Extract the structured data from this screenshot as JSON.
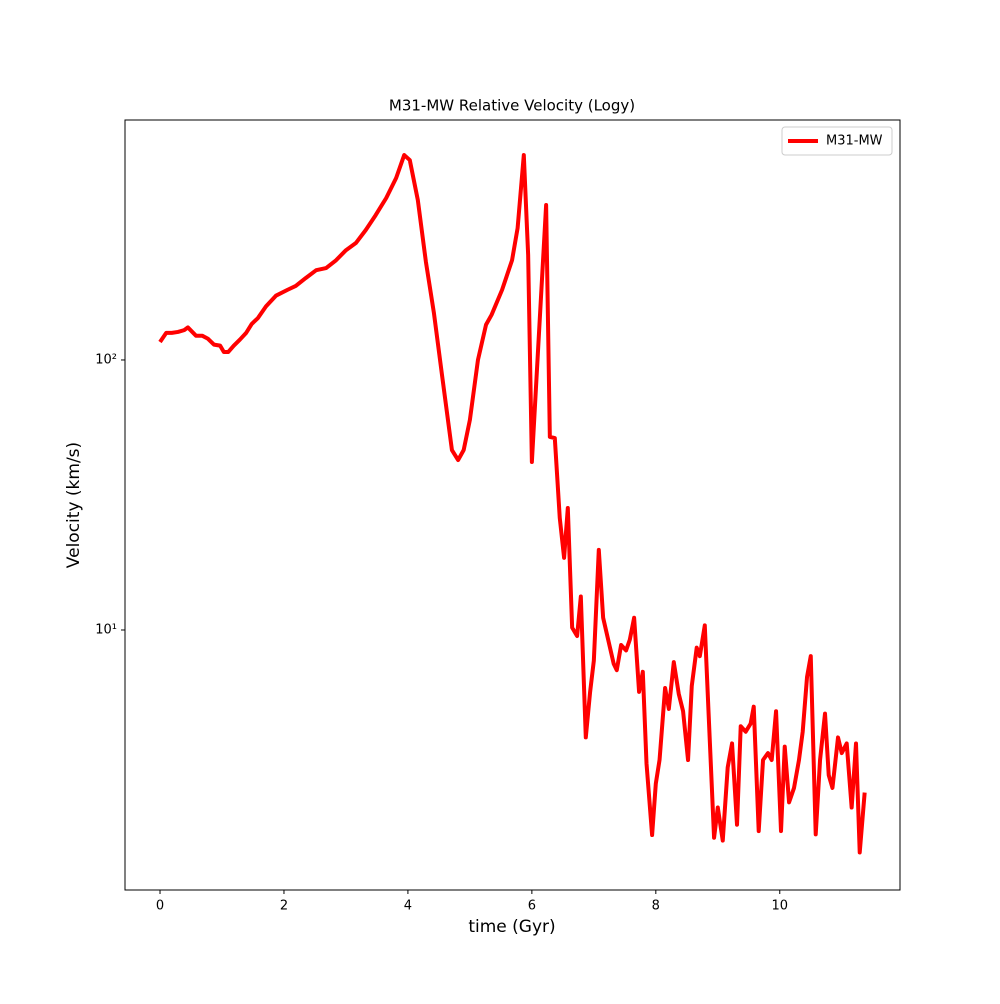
{
  "chart_data": {
    "type": "line",
    "title": "M31-MW Relative Velocity (Logy)",
    "xlabel": "time (Gyr)",
    "ylabel": "Velocity (km/s)",
    "yscale": "log",
    "legend": "upper right",
    "xlim": [
      -0.565,
      11.94
    ],
    "ylim": [
      1.089,
      774
    ],
    "xticks": [
      0,
      2,
      4,
      6,
      8,
      10
    ],
    "yticks": [
      {
        "value": 10,
        "label": "10¹"
      },
      {
        "value": 100,
        "label": "10²"
      }
    ],
    "x": [
      0,
      0.1,
      0.19,
      0.29,
      0.39,
      0.45,
      0.58,
      0.68,
      0.77,
      0.87,
      0.97,
      1.03,
      1.1,
      1.19,
      1.29,
      1.39,
      1.48,
      1.58,
      1.71,
      1.87,
      2.06,
      2.19,
      2.35,
      2.52,
      2.68,
      2.84,
      3.0,
      3.16,
      3.32,
      3.48,
      3.65,
      3.81,
      3.94,
      4.03,
      4.16,
      4.29,
      4.42,
      4.55,
      4.71,
      4.81,
      4.9,
      5.0,
      5.13,
      5.26,
      5.35,
      5.52,
      5.68,
      5.77,
      5.87,
      5.94,
      6.0,
      6.1,
      6.23,
      6.29,
      6.37,
      6.45,
      6.52,
      6.58,
      6.65,
      6.73,
      6.79,
      6.87,
      6.94,
      7.0,
      7.08,
      7.15,
      7.32,
      7.37,
      7.44,
      7.52,
      7.58,
      7.65,
      7.73,
      7.79,
      7.85,
      7.94,
      8.0,
      8.06,
      8.15,
      8.21,
      8.29,
      8.37,
      8.44,
      8.52,
      8.58,
      8.66,
      8.71,
      8.79,
      8.85,
      8.94,
      9.0,
      9.08,
      9.16,
      9.23,
      9.31,
      9.37,
      9.45,
      9.53,
      9.58,
      9.66,
      9.73,
      9.81,
      9.87,
      9.94,
      10.02,
      10.08,
      10.15,
      10.23,
      10.31,
      10.37,
      10.44,
      10.5,
      10.58,
      10.65,
      10.73,
      10.79,
      10.85,
      10.94,
      11.0,
      11.08,
      11.16,
      11.23,
      11.29,
      11.37
    ],
    "series": [
      {
        "name": "M31-MW",
        "color": "#ff0000",
        "values": [
          116.6,
          126,
          126,
          127,
          129,
          132,
          123,
          123,
          120,
          114,
          113,
          107,
          107,
          113,
          119,
          126,
          136,
          143,
          158,
          173,
          182,
          188,
          201,
          215,
          219,
          234,
          255,
          271,
          303,
          344,
          398,
          472,
          574,
          550,
          391,
          231,
          149,
          88,
          46.4,
          42.6,
          46.4,
          60,
          100,
          135,
          147,
          182,
          234,
          308,
          574,
          245,
          41.9,
          109,
          375,
          51.9,
          51.4,
          26.0,
          18.5,
          28.3,
          10.2,
          9.5,
          13.3,
          4.0,
          5.9,
          7.7,
          19.8,
          11.1,
          7.5,
          7.1,
          8.8,
          8.4,
          9.2,
          11.1,
          5.9,
          7.0,
          3.2,
          1.74,
          2.7,
          3.3,
          6.1,
          5.1,
          7.6,
          5.8,
          5.0,
          3.3,
          6.2,
          8.6,
          8.0,
          10.4,
          5.0,
          1.7,
          2.2,
          1.66,
          3.1,
          3.8,
          1.9,
          4.4,
          4.2,
          4.5,
          5.2,
          1.8,
          3.3,
          3.5,
          3.3,
          5.0,
          1.8,
          3.7,
          2.3,
          2.6,
          3.3,
          4.2,
          6.7,
          8.0,
          1.75,
          3.3,
          4.9,
          2.9,
          2.6,
          4.0,
          3.5,
          3.8,
          2.2,
          3.8,
          1.5,
          2.5
        ]
      }
    ]
  }
}
